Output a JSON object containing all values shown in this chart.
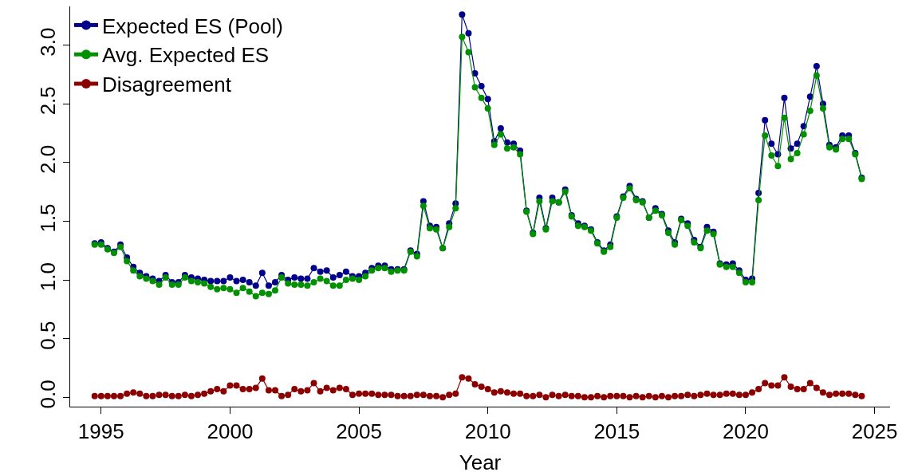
{
  "chart_data": {
    "type": "line",
    "xlabel": "Year",
    "marker": "circle",
    "line_style": "solid",
    "legend": "top left",
    "xlim": [
      1993.8,
      2025.6
    ],
    "xticks": [
      1995,
      2000,
      2005,
      2010,
      2015,
      2020,
      2025
    ],
    "ylim": [
      -0.08,
      3.33
    ],
    "yticks": [
      {
        "value": 0,
        "label": "0.0"
      },
      0.5,
      {
        "value": 1,
        "label": "1.0"
      },
      1.5,
      {
        "value": 2,
        "label": "2.0"
      },
      2.5,
      {
        "value": 3,
        "label": "3.0"
      }
    ],
    "x": [
      1994.75,
      1995,
      1995.25,
      1995.5,
      1995.75,
      1996,
      1996.25,
      1996.5,
      1996.75,
      1997,
      1997.25,
      1997.5,
      1997.75,
      1998,
      1998.25,
      1998.5,
      1998.75,
      1999,
      1999.25,
      1999.5,
      1999.75,
      2000,
      2000.25,
      2000.5,
      2000.75,
      2001,
      2001.25,
      2001.5,
      2001.75,
      2002,
      2002.25,
      2002.5,
      2002.75,
      2003,
      2003.25,
      2003.5,
      2003.75,
      2004,
      2004.25,
      2004.5,
      2004.75,
      2005,
      2005.25,
      2005.5,
      2005.75,
      2006,
      2006.25,
      2006.5,
      2006.75,
      2007,
      2007.25,
      2007.5,
      2007.75,
      2008,
      2008.25,
      2008.5,
      2008.75,
      2009,
      2009.25,
      2009.5,
      2009.75,
      2010,
      2010.25,
      2010.5,
      2010.75,
      2011,
      2011.25,
      2011.5,
      2011.75,
      2012,
      2012.25,
      2012.5,
      2012.75,
      2013,
      2013.25,
      2013.5,
      2013.75,
      2014,
      2014.25,
      2014.5,
      2014.75,
      2015,
      2015.25,
      2015.5,
      2015.75,
      2016,
      2016.25,
      2016.5,
      2016.75,
      2017,
      2017.25,
      2017.5,
      2017.75,
      2018,
      2018.25,
      2018.5,
      2018.75,
      2019,
      2019.25,
      2019.5,
      2019.75,
      2020,
      2020.25,
      2020.5,
      2020.75,
      2021,
      2021.25,
      2021.5,
      2021.75,
      2022,
      2022.25,
      2022.5,
      2022.75,
      2023,
      2023.25,
      2023.5,
      2023.75,
      2024,
      2024.25,
      2024.5
    ],
    "series": [
      {
        "name": "Expected ES (Pool)",
        "color": "#00008b",
        "values": [
          1.31,
          1.32,
          1.27,
          1.24,
          1.3,
          1.19,
          1.11,
          1.06,
          1.03,
          1.01,
          0.99,
          1.04,
          0.98,
          0.98,
          1.04,
          1.02,
          1.01,
          1.0,
          0.99,
          0.99,
          0.99,
          1.02,
          0.99,
          1.0,
          0.98,
          0.95,
          1.06,
          0.95,
          0.98,
          1.04,
          1.0,
          1.02,
          1.01,
          1.01,
          1.1,
          1.07,
          1.08,
          1.02,
          1.04,
          1.07,
          1.03,
          1.03,
          1.06,
          1.1,
          1.12,
          1.12,
          1.09,
          1.09,
          1.09,
          1.25,
          1.22,
          1.67,
          1.46,
          1.45,
          1.27,
          1.48,
          1.65,
          3.26,
          3.1,
          2.76,
          2.65,
          2.54,
          2.18,
          2.29,
          2.17,
          2.16,
          2.1,
          1.59,
          1.4,
          1.7,
          1.44,
          1.7,
          1.66,
          1.77,
          1.55,
          1.48,
          1.46,
          1.43,
          1.32,
          1.25,
          1.3,
          1.54,
          1.71,
          1.8,
          1.69,
          1.67,
          1.53,
          1.61,
          1.56,
          1.42,
          1.32,
          1.52,
          1.48,
          1.34,
          1.28,
          1.45,
          1.41,
          1.14,
          1.13,
          1.14,
          1.08,
          1.0,
          1.01,
          1.74,
          2.36,
          2.16,
          2.07,
          2.55,
          2.12,
          2.16,
          2.31,
          2.56,
          2.82,
          2.5,
          2.15,
          2.13,
          2.23,
          2.23,
          2.08,
          1.87
        ]
      },
      {
        "name": "Avg. Expected ES",
        "color": "#009000",
        "values": [
          1.3,
          1.3,
          1.26,
          1.23,
          1.28,
          1.16,
          1.08,
          1.03,
          1.01,
          0.99,
          0.96,
          1.02,
          0.96,
          0.96,
          1.02,
          0.99,
          0.98,
          0.97,
          0.94,
          0.92,
          0.93,
          0.92,
          0.89,
          0.93,
          0.9,
          0.86,
          0.89,
          0.88,
          0.91,
          1.02,
          0.97,
          0.96,
          0.96,
          0.95,
          0.98,
          1.01,
          0.99,
          0.95,
          0.95,
          1.0,
          1.01,
          1.0,
          1.03,
          1.08,
          1.1,
          1.1,
          1.07,
          1.08,
          1.08,
          1.24,
          1.2,
          1.63,
          1.44,
          1.43,
          1.27,
          1.45,
          1.61,
          3.07,
          2.94,
          2.64,
          2.55,
          2.46,
          2.15,
          2.24,
          2.12,
          2.13,
          2.07,
          1.58,
          1.39,
          1.67,
          1.43,
          1.67,
          1.66,
          1.75,
          1.54,
          1.46,
          1.45,
          1.42,
          1.31,
          1.24,
          1.28,
          1.53,
          1.7,
          1.78,
          1.68,
          1.66,
          1.53,
          1.59,
          1.55,
          1.4,
          1.3,
          1.51,
          1.46,
          1.32,
          1.27,
          1.42,
          1.39,
          1.13,
          1.11,
          1.11,
          1.06,
          0.98,
          0.98,
          1.68,
          2.23,
          2.06,
          1.97,
          2.38,
          2.03,
          2.08,
          2.24,
          2.44,
          2.74,
          2.46,
          2.13,
          2.11,
          2.2,
          2.2,
          2.07,
          1.86
        ]
      },
      {
        "name": "Disagreement",
        "color": "#8b0000",
        "values": [
          0.01,
          0.01,
          0.01,
          0.01,
          0.01,
          0.03,
          0.04,
          0.03,
          0.01,
          0.01,
          0.02,
          0.02,
          0.01,
          0.01,
          0.02,
          0.01,
          0.02,
          0.03,
          0.05,
          0.07,
          0.05,
          0.1,
          0.1,
          0.07,
          0.07,
          0.08,
          0.16,
          0.06,
          0.06,
          0.01,
          0.02,
          0.07,
          0.05,
          0.06,
          0.12,
          0.05,
          0.08,
          0.06,
          0.08,
          0.07,
          0.02,
          0.03,
          0.03,
          0.03,
          0.02,
          0.02,
          0.02,
          0.01,
          0.01,
          0.01,
          0.02,
          0.02,
          0.01,
          0.01,
          0.0,
          0.02,
          0.03,
          0.17,
          0.16,
          0.11,
          0.09,
          0.07,
          0.04,
          0.05,
          0.04,
          0.03,
          0.03,
          0.01,
          0.01,
          0.02,
          0.0,
          0.02,
          0.01,
          0.02,
          0.01,
          0.01,
          0.0,
          0.0,
          0.01,
          0.0,
          0.01,
          0.01,
          0.01,
          0.0,
          0.01,
          0.0,
          0.01,
          0.0,
          0.01,
          0.0,
          0.01,
          0.01,
          0.02,
          0.01,
          0.02,
          0.03,
          0.02,
          0.02,
          0.03,
          0.03,
          0.02,
          0.02,
          0.04,
          0.07,
          0.12,
          0.1,
          0.1,
          0.17,
          0.09,
          0.07,
          0.07,
          0.12,
          0.08,
          0.04,
          0.02,
          0.03,
          0.03,
          0.03,
          0.02,
          0.01
        ]
      }
    ]
  }
}
